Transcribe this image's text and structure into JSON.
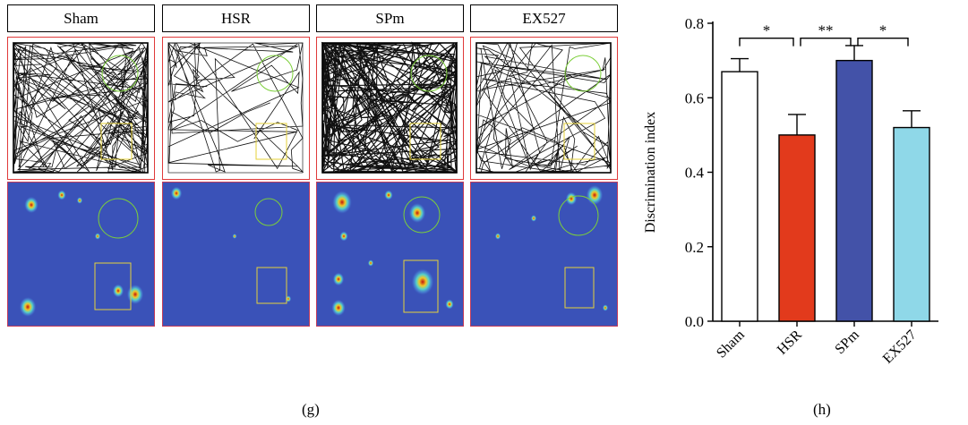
{
  "panel_g": {
    "letter": "(g)",
    "groups": [
      {
        "id": "sham",
        "label": "Sham"
      },
      {
        "id": "hsr",
        "label": "HSR"
      },
      {
        "id": "spm",
        "label": "SPm"
      },
      {
        "id": "ex527",
        "label": "EX527"
      }
    ]
  },
  "panel_h": {
    "letter": "(h)"
  },
  "chart_data": {
    "type": "bar",
    "categories": [
      "Sham",
      "HSR",
      "SPm",
      "EX527"
    ],
    "values": [
      0.67,
      0.5,
      0.7,
      0.52
    ],
    "errors": [
      0.035,
      0.055,
      0.04,
      0.045
    ],
    "bar_colors": [
      "#ffffff",
      "#e23a1c",
      "#4352a8",
      "#8fd8e8"
    ],
    "ylabel": "Discrimination index",
    "ylim": [
      0,
      0.8
    ],
    "yticks": [
      "0.0",
      "0.2",
      "0.4",
      "0.6",
      "0.8"
    ],
    "annotations": [
      {
        "from": "Sham",
        "to": "HSR",
        "text": "*"
      },
      {
        "from": "HSR",
        "to": "SPm",
        "text": "**"
      },
      {
        "from": "SPm",
        "to": "EX527",
        "text": "*"
      }
    ],
    "grid": false
  }
}
